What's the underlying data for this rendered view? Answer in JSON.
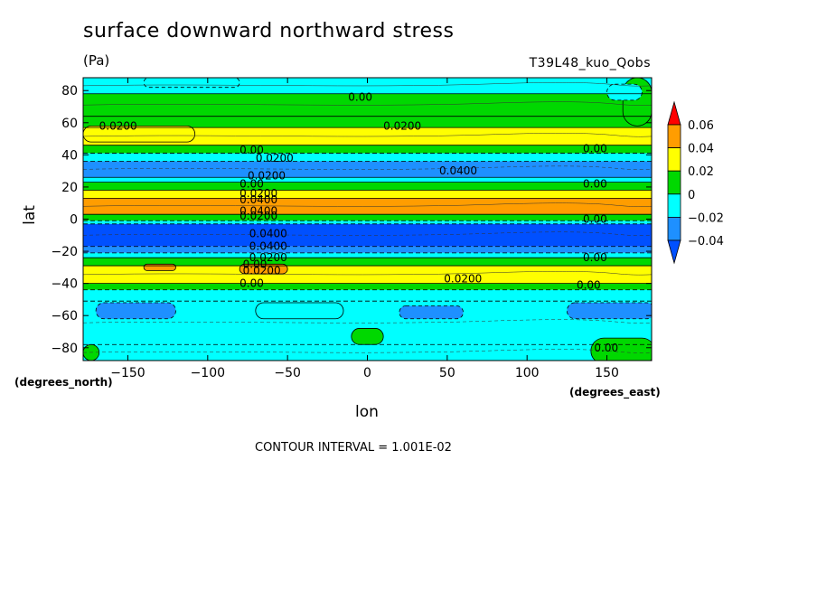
{
  "chart_data": {
    "type": "heatmap",
    "title": "surface downward northward stress",
    "units": "(Pa)",
    "run_id": "T39L48_kuo_Qobs",
    "xlabel": "lon",
    "ylabel": "lat",
    "x_units": "(degrees_east)",
    "y_units": "(degrees_north)",
    "xlim": [
      -178,
      178
    ],
    "ylim": [
      -88,
      88
    ],
    "x_ticks": [
      -150,
      -100,
      -50,
      0,
      50,
      100,
      150
    ],
    "x_tick_labels": [
      "−150",
      "−100",
      "−50",
      "0",
      "50",
      "100",
      "150"
    ],
    "y_ticks": [
      -80,
      -60,
      -40,
      -20,
      0,
      20,
      40,
      60,
      80
    ],
    "y_tick_labels": [
      "−80",
      "−60",
      "−40",
      "−20",
      "0",
      "20",
      "40",
      "60",
      "80"
    ],
    "colorbar": {
      "levels": [
        0.06,
        0.04,
        0.02,
        0,
        -0.02,
        -0.04
      ],
      "labels": [
        "0.06",
        "0.04",
        "0.02",
        "0",
        "−0.02",
        "−0.04"
      ],
      "colors": [
        "#ff0000",
        "#ff9d00",
        "#ffff00",
        "#00d800",
        "#00ffff",
        "#1e90ff",
        "#0050ff"
      ]
    },
    "zonal_bands": [
      {
        "lat": [
          78,
          88
        ],
        "value": 0.0
      },
      {
        "lat": [
          64,
          78
        ],
        "value": 0.01
      },
      {
        "lat": [
          57,
          64
        ],
        "value": 0.005
      },
      {
        "lat": [
          46,
          57
        ],
        "value": 0.03
      },
      {
        "lat": [
          41,
          46
        ],
        "value": 0.01
      },
      {
        "lat": [
          36,
          41
        ],
        "value": -0.01
      },
      {
        "lat": [
          26,
          36
        ],
        "value": -0.03
      },
      {
        "lat": [
          23,
          26
        ],
        "value": 0.0
      },
      {
        "lat": [
          18,
          23
        ],
        "value": 0.01
      },
      {
        "lat": [
          13,
          18
        ],
        "value": 0.03
      },
      {
        "lat": [
          3,
          13
        ],
        "value": 0.045
      },
      {
        "lat": [
          -1,
          3
        ],
        "value": 0.01
      },
      {
        "lat": [
          -3,
          -1
        ],
        "value": -0.01
      },
      {
        "lat": [
          -17,
          -3
        ],
        "value": -0.045
      },
      {
        "lat": [
          -21,
          -17
        ],
        "value": -0.03
      },
      {
        "lat": [
          -24,
          -21
        ],
        "value": -0.01
      },
      {
        "lat": [
          -29,
          -24
        ],
        "value": 0.01
      },
      {
        "lat": [
          -40,
          -29
        ],
        "value": 0.03
      },
      {
        "lat": [
          -44,
          -40
        ],
        "value": 0.01
      },
      {
        "lat": [
          -51,
          -44
        ],
        "value": -0.01
      },
      {
        "lat": [
          -78,
          -51
        ],
        "value": -0.015
      },
      {
        "lat": [
          -88,
          -78
        ],
        "value": -0.01
      }
    ],
    "patches": [
      {
        "lon": -178,
        "lat": 58,
        "w": 70,
        "h": 10,
        "value": 0.03
      },
      {
        "lon": 160,
        "lat": 88,
        "w": 18,
        "h": 30,
        "value": 0.005
      },
      {
        "lon": -140,
        "lat": 88,
        "w": 60,
        "h": 6,
        "value": -0.005
      },
      {
        "lon": -80,
        "lat": -28,
        "w": 30,
        "h": 6,
        "value": 0.045
      },
      {
        "lon": -140,
        "lat": -28,
        "w": 20,
        "h": 4,
        "value": 0.045
      },
      {
        "lon": -170,
        "lat": -52,
        "w": 50,
        "h": 10,
        "value": -0.025
      },
      {
        "lon": -70,
        "lat": -52,
        "w": 55,
        "h": 10,
        "value": 0.0
      },
      {
        "lon": 20,
        "lat": -54,
        "w": 40,
        "h": 8,
        "value": -0.025
      },
      {
        "lon": 125,
        "lat": -52,
        "w": 55,
        "h": 10,
        "value": -0.025
      },
      {
        "lon": -10,
        "lat": -68,
        "w": 20,
        "h": 10,
        "value": 0.01
      },
      {
        "lon": 140,
        "lat": -74,
        "w": 40,
        "h": 16,
        "value": 0.005
      },
      {
        "lon": -178,
        "lat": -78,
        "w": 10,
        "h": 10,
        "value": 0.005
      },
      {
        "lon": 150,
        "lat": 84,
        "w": 22,
        "h": 10,
        "value": -0.015
      }
    ],
    "contour_labels": [
      {
        "lon": -12,
        "lat": 76,
        "text": "0.00"
      },
      {
        "lon": -168,
        "lat": 58,
        "text": "0.0200"
      },
      {
        "lon": 10,
        "lat": 58,
        "text": "0.0200"
      },
      {
        "lon": 135,
        "lat": 44,
        "text": "0.00"
      },
      {
        "lon": -80,
        "lat": 43,
        "text": "0.00"
      },
      {
        "lon": -70,
        "lat": 38,
        "text": "0.0200"
      },
      {
        "lon": 45,
        "lat": 30,
        "text": "0.0400"
      },
      {
        "lon": -75,
        "lat": 27,
        "text": "0.0200"
      },
      {
        "lon": -80,
        "lat": 22,
        "text": "0.00"
      },
      {
        "lon": -80,
        "lat": 16,
        "text": "0.0200"
      },
      {
        "lon": -80,
        "lat": 12,
        "text": "0.0400"
      },
      {
        "lon": 135,
        "lat": 22,
        "text": "0.00"
      },
      {
        "lon": -80,
        "lat": 5,
        "text": "0.0400"
      },
      {
        "lon": -80,
        "lat": 2,
        "text": "0.0200"
      },
      {
        "lon": 135,
        "lat": 0,
        "text": "0.00"
      },
      {
        "lon": -74,
        "lat": -9,
        "text": "0.0400"
      },
      {
        "lon": -74,
        "lat": -17,
        "text": "0.0400"
      },
      {
        "lon": -74,
        "lat": -24,
        "text": "0.0200"
      },
      {
        "lon": -78,
        "lat": -28,
        "text": "0.00"
      },
      {
        "lon": -78,
        "lat": -32,
        "text": "0.0200"
      },
      {
        "lon": 135,
        "lat": -24,
        "text": "0.00"
      },
      {
        "lon": 48,
        "lat": -37,
        "text": "0.0200"
      },
      {
        "lon": 131,
        "lat": -41,
        "text": "0.00"
      },
      {
        "lon": -80,
        "lat": -40,
        "text": "0.00"
      },
      {
        "lon": 142,
        "lat": -80,
        "text": "0.00"
      }
    ]
  },
  "footer": {
    "contour_interval": "CONTOUR INTERVAL = 1.001E-02"
  }
}
